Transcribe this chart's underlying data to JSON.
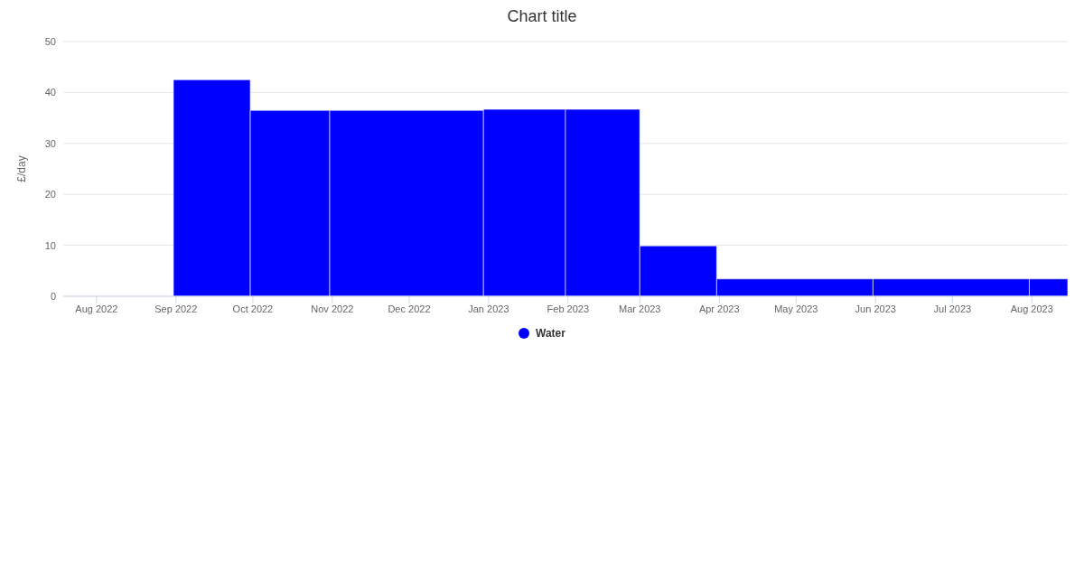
{
  "chart_data": {
    "type": "histogram",
    "title": "Chart title",
    "ylabel": "£/day",
    "bins": [
      "2022-08-31",
      "2022-09-30",
      "2022-10-31",
      "2022-12-30",
      "2023-01-31",
      "2023-03-01",
      "2023-03-31",
      "2023-05-31",
      "2023-07-31",
      "2023-08-15"
    ],
    "series": [
      {
        "name": "Water",
        "color": "#0000ff",
        "values": [
          42.5,
          36.5,
          36.5,
          36.7,
          36.7,
          9.9,
          3.4,
          3.4,
          3.4
        ]
      }
    ],
    "xlim": [
      "2022-07-19",
      "2023-08-15"
    ],
    "xticks": [
      {
        "value": "2022-08-01",
        "label": "Aug 2022"
      },
      {
        "value": "2022-09-01",
        "label": "Sep 2022"
      },
      {
        "value": "2022-10-01",
        "label": "Oct 2022"
      },
      {
        "value": "2022-11-01",
        "label": "Nov 2022"
      },
      {
        "value": "2022-12-01",
        "label": "Dec 2022"
      },
      {
        "value": "2023-01-01",
        "label": "Jan 2023"
      },
      {
        "value": "2023-02-01",
        "label": "Feb 2023"
      },
      {
        "value": "2023-03-01",
        "label": "Mar 2023"
      },
      {
        "value": "2023-04-01",
        "label": "Apr 2023"
      },
      {
        "value": "2023-05-01",
        "label": "May 2023"
      },
      {
        "value": "2023-06-01",
        "label": "Jun 2023"
      },
      {
        "value": "2023-07-01",
        "label": "Jul 2023"
      },
      {
        "value": "2023-08-01",
        "label": "Aug 2023"
      }
    ],
    "ylim": [
      0,
      50
    ],
    "yticks": [
      0,
      10,
      20,
      30,
      40,
      50
    ],
    "grid": "y",
    "legend": "bottom"
  }
}
